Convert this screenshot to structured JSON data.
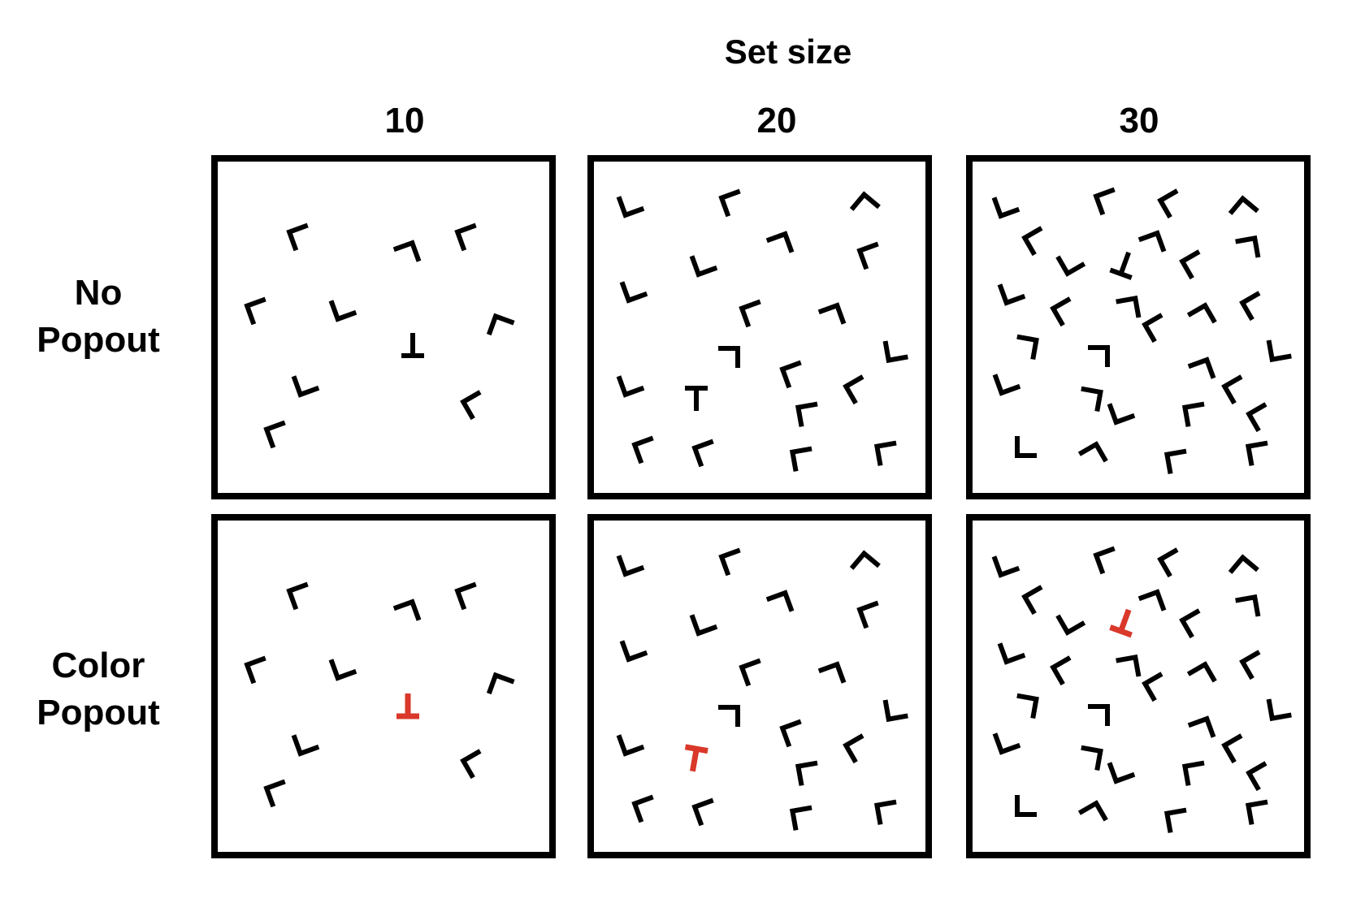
{
  "figure": {
    "title": "Set size",
    "columns": [
      "10",
      "20",
      "30"
    ],
    "rows": [
      {
        "name": "no-popout",
        "label_lines": [
          "No",
          "Popout"
        ],
        "target_color": "#000000"
      },
      {
        "name": "color-popout",
        "label_lines": [
          "Color",
          "Popout"
        ],
        "target_color": "#d9382a"
      }
    ],
    "distractor_letter": "L",
    "target_letter": "T",
    "colors": {
      "distractor": "#000000",
      "frame": "#000000",
      "popout_target": "#d9382a"
    },
    "panels": [
      {
        "set_size": 10,
        "distractors": 9,
        "targets": 1
      },
      {
        "set_size": 20,
        "distractors": 19,
        "targets": 1
      },
      {
        "set_size": 30,
        "distractors": 29,
        "targets": 1
      }
    ]
  }
}
